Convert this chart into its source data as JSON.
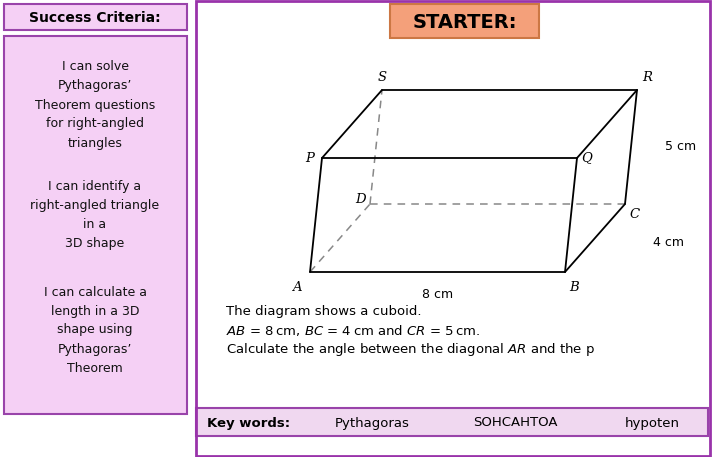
{
  "bg_color": "#ffffff",
  "left_panel_bg": "#f5d0f5",
  "left_panel_border": "#9944aa",
  "header_bg": "#f5d0f5",
  "header_border": "#9944aa",
  "header_text": "Success Criteria:",
  "header_text_color": "#000000",
  "criteria": [
    "I can solve\nPythagoras’\nTheorem questions\nfor right-angled\ntriangles",
    "I can identify a\nright-angled triangle\nin a\n3D shape",
    "I can calculate a\nlength in a 3D\nshape using\nPythagoras’\nTheorem"
  ],
  "starter_bg": "#f4a07a",
  "starter_border": "#cc7744",
  "starter_text": "STARTER:",
  "cuboid_color": "#000000",
  "dashed_color": "#888888",
  "label_color": "#000000",
  "text_line1": "The diagram shows a cuboid.",
  "text_line2": "AB = 8 cm, BC = 4 cm and CR = 5 cm.",
  "text_line3": "Calculate the angle between the diagonal AR and the p",
  "keywords_bg": "#f0d8f0",
  "keywords_border": "#9944aa",
  "keywords_text": "Key words:",
  "keyword1": "Pythagoras",
  "keyword2": "SOHCAHTOA",
  "keyword3": "hypoten"
}
